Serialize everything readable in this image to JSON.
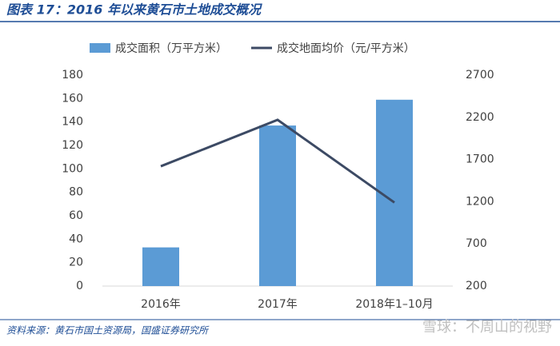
{
  "chart_data": {
    "type": "bar-line",
    "title": "图表 17：2016 年以来黄石市土地成交概况",
    "source": "资料来源：黄石市国土资源局，国盛证券研究所",
    "watermark": "雪球：不周山的视野",
    "categories": [
      "2016年",
      "2017年",
      "2018年1–10月"
    ],
    "series": [
      {
        "name": "成交面积（万平方米）",
        "type": "bar",
        "color": "#5b9bd5",
        "values": [
          33,
          137,
          159
        ]
      },
      {
        "name": "成交地面均价（元/平方米）",
        "type": "line",
        "axis": "y2",
        "color": "#3c4a64",
        "values": [
          1620,
          2170,
          1190
        ]
      }
    ],
    "ylim": [
      0,
      180
    ],
    "yticks": [
      0,
      20,
      40,
      60,
      80,
      100,
      120,
      140,
      160,
      180
    ],
    "y2lim": [
      200,
      2700
    ],
    "y2ticks": [
      200,
      700,
      1200,
      1700,
      2200,
      2700
    ],
    "legend": "top",
    "grid": false
  }
}
